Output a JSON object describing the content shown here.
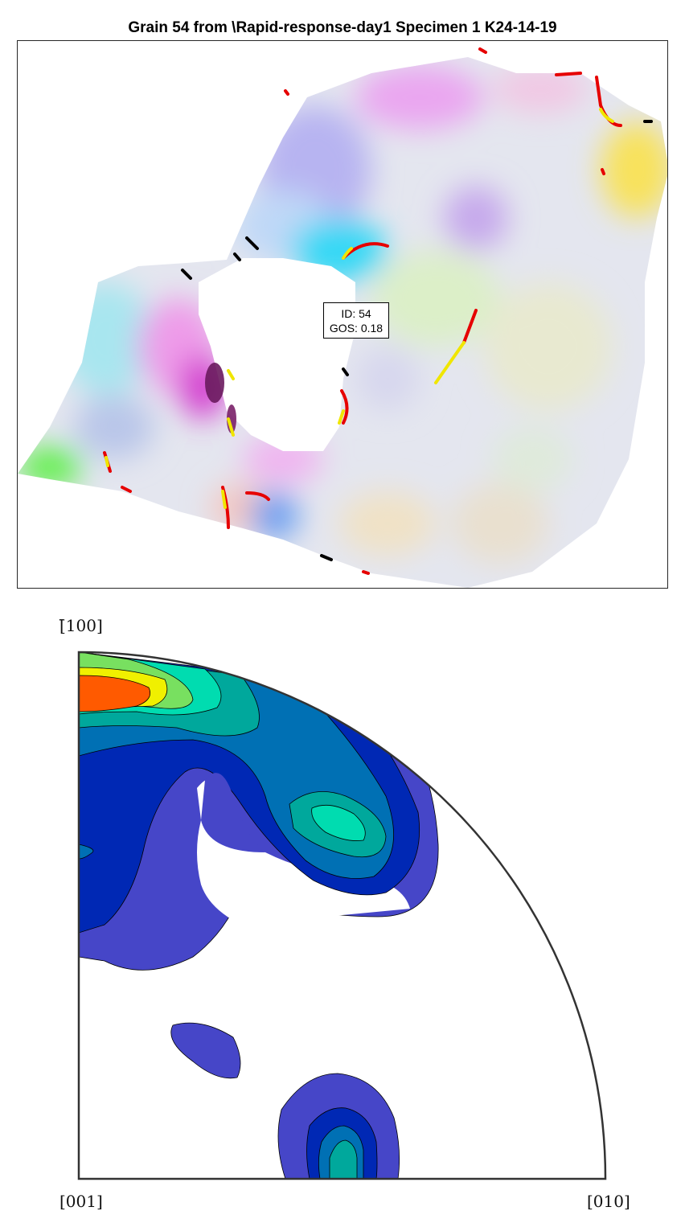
{
  "title": "Grain 54 from \\Rapid-response-day1 Specimen 1 K24-14-19",
  "grain_label": {
    "id_text": "ID: 54",
    "gos_text": "GOS: 0.18"
  },
  "pole_figure": {
    "label_top": "[̄100]",
    "label_bottom_left": "[001]",
    "label_bottom_right": "[010]",
    "colormap": [
      "#4646c8",
      "#0028b4",
      "#0070b4",
      "#00a89c",
      "#00dcb0",
      "#78e060",
      "#f0f000",
      "#ff5a00"
    ],
    "boundary_colors": {
      "high": "#e60000",
      "mid": "#f0e600",
      "low": "#000000"
    }
  }
}
